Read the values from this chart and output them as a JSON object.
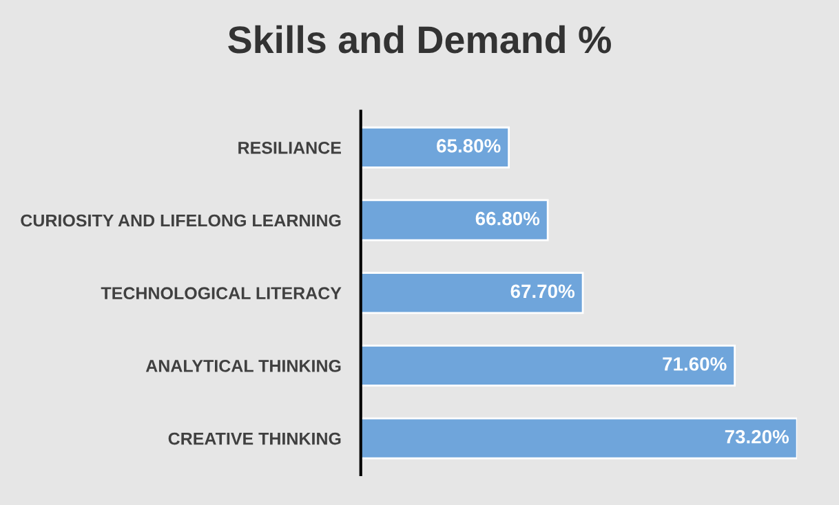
{
  "chart_data": {
    "type": "bar",
    "orientation": "horizontal",
    "title": "Skills and Demand %",
    "categories": [
      "RESILIANCE",
      "CURIOSITY AND LIFELONG LEARNING",
      "TECHNOLOGICAL LITERACY",
      "ANALYTICAL THINKING",
      "CREATIVE THINKING"
    ],
    "values": [
      65.8,
      66.8,
      67.7,
      71.6,
      73.2
    ],
    "value_labels": [
      "65.80%",
      "66.80%",
      "67.70%",
      "71.60%",
      "73.20%"
    ],
    "color": "#6fa5db",
    "xlim": [
      62,
      73.2
    ],
    "tick_labels": "y",
    "grid": false,
    "legend": false
  }
}
